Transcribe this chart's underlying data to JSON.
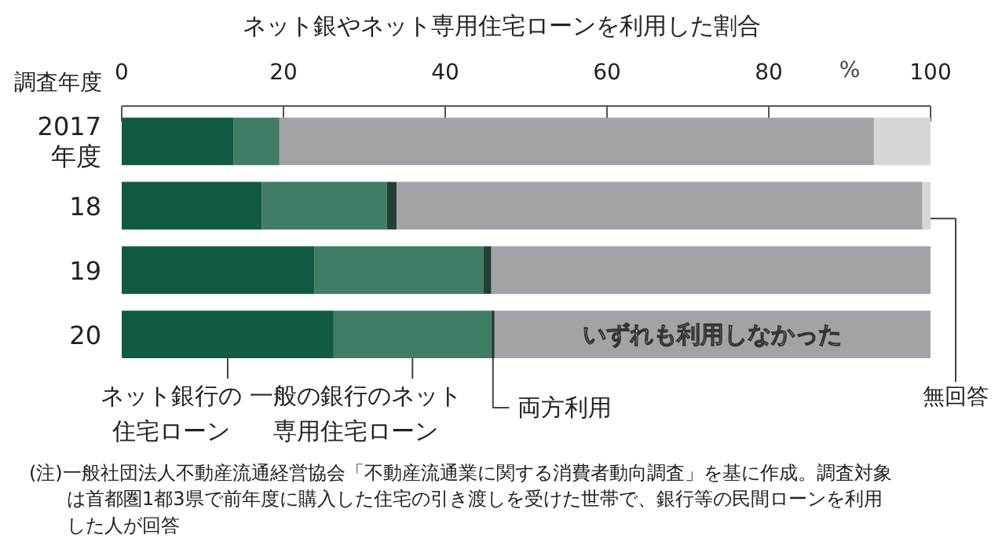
{
  "chart_data": {
    "type": "bar",
    "orientation": "horizontal",
    "stacked": true,
    "title": "ネット銀やネット専用住宅ローンを利用した割合",
    "xlabel": "%",
    "ylabel": "調査年度",
    "categories": [
      "2017年度",
      "18",
      "19",
      "20"
    ],
    "xlim": [
      0,
      100
    ],
    "xticks": [
      0,
      20,
      40,
      60,
      80,
      100
    ],
    "series": [
      {
        "name": "ネット銀行の住宅ローン",
        "color": "#115a43",
        "values": [
          13.8,
          17.3,
          23.8,
          26.2
        ]
      },
      {
        "name": "一般の銀行のネット専用住宅ローン",
        "color": "#3f7d65",
        "values": [
          5.7,
          15.5,
          20.9,
          19.5
        ]
      },
      {
        "name": "両方利用",
        "color": "#263f35",
        "values": [
          0,
          1.2,
          1.0,
          0.4
        ]
      },
      {
        "color": "#a2a3a7",
        "values": [
          73.5,
          65.0,
          54.3,
          53.9
        ]
      },
      {
        "name": "無回答",
        "color": "#d5d6d8",
        "values": [
          7.0,
          1.0,
          0,
          0
        ]
      }
    ],
    "annotations": [
      "いずれも利用しなかった",
      "(注)一般社団法人不動産流通経営協会「不動産流通業に関する消費者動向調査」を基に作成。調査対象は首都圏1都3県で前年度に購入した住宅の引き渡しを受けた世帯で、銀行等の民間ローンを利用した人が回答"
    ],
    "grid": false,
    "legend": false
  }
}
